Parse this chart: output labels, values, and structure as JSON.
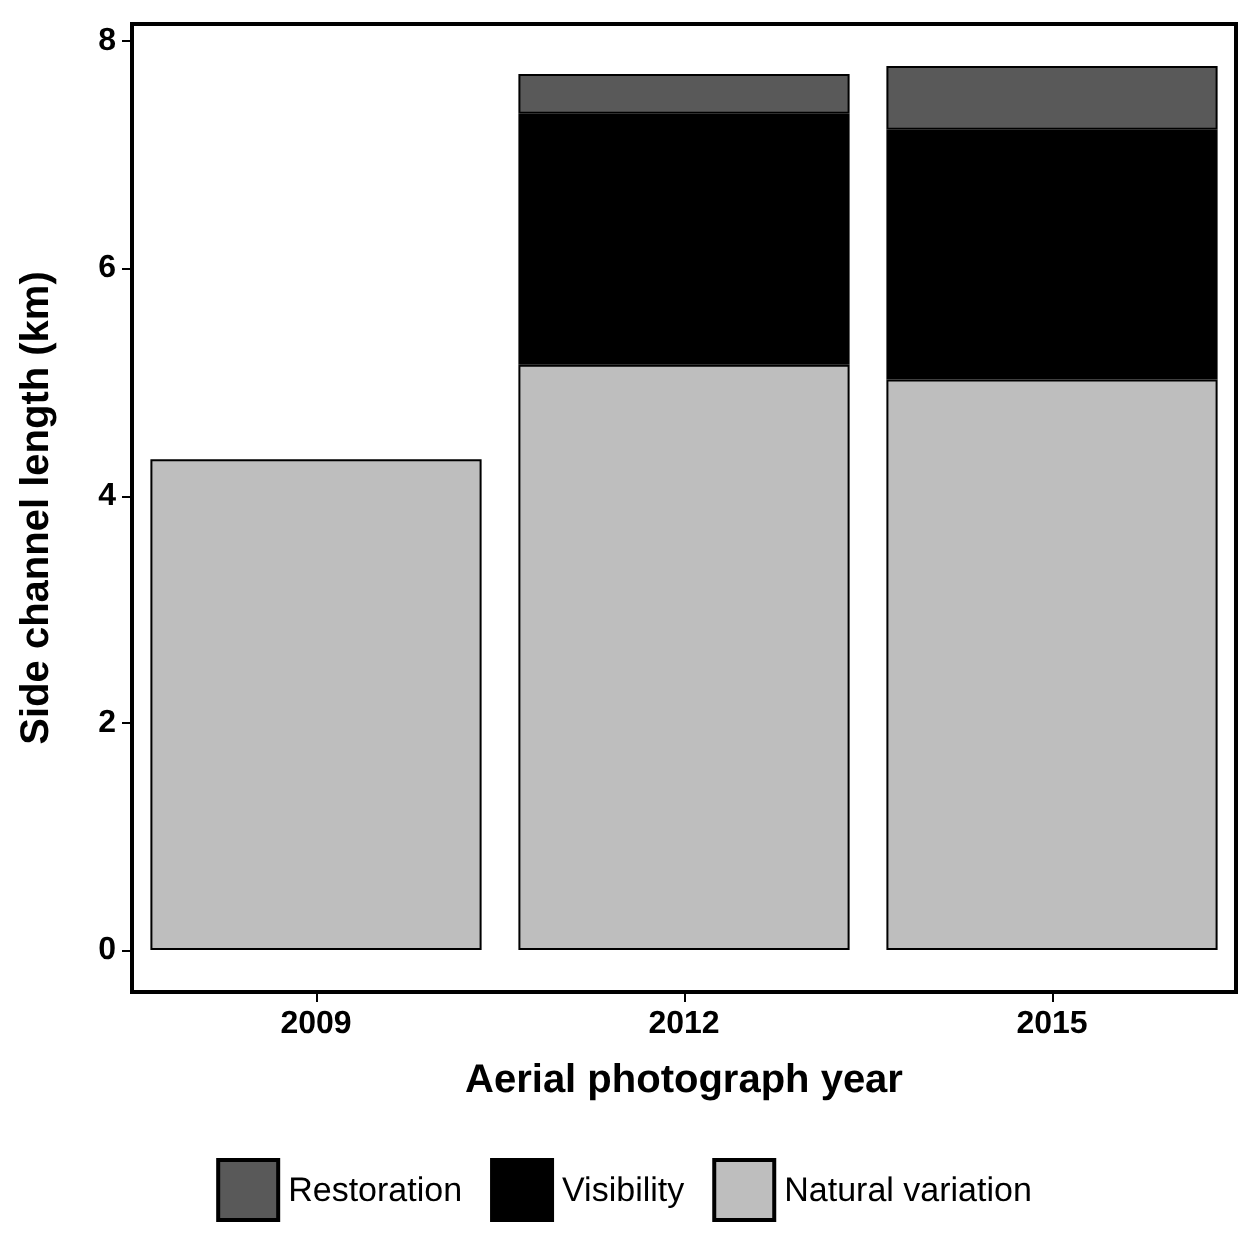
{
  "chart_data": {
    "type": "bar",
    "stacked": true,
    "xlabel": "Aerial photograph year",
    "ylabel": "Side channel length (km)",
    "categories": [
      "2009",
      "2012",
      "2015"
    ],
    "series": [
      {
        "name": "Natural variation",
        "color": "#bebebe",
        "values": [
          4.32,
          5.15,
          5.02
        ]
      },
      {
        "name": "Visibility",
        "color": "#000000",
        "values": [
          null,
          2.21,
          2.2
        ]
      },
      {
        "name": "Restoration",
        "color": "#595959",
        "values": [
          null,
          0.35,
          0.56
        ]
      }
    ],
    "ylim": [
      -0.37,
      8.15
    ],
    "yticks": [
      0,
      2,
      4,
      6,
      8
    ],
    "grid": false,
    "legend": "bottom"
  }
}
